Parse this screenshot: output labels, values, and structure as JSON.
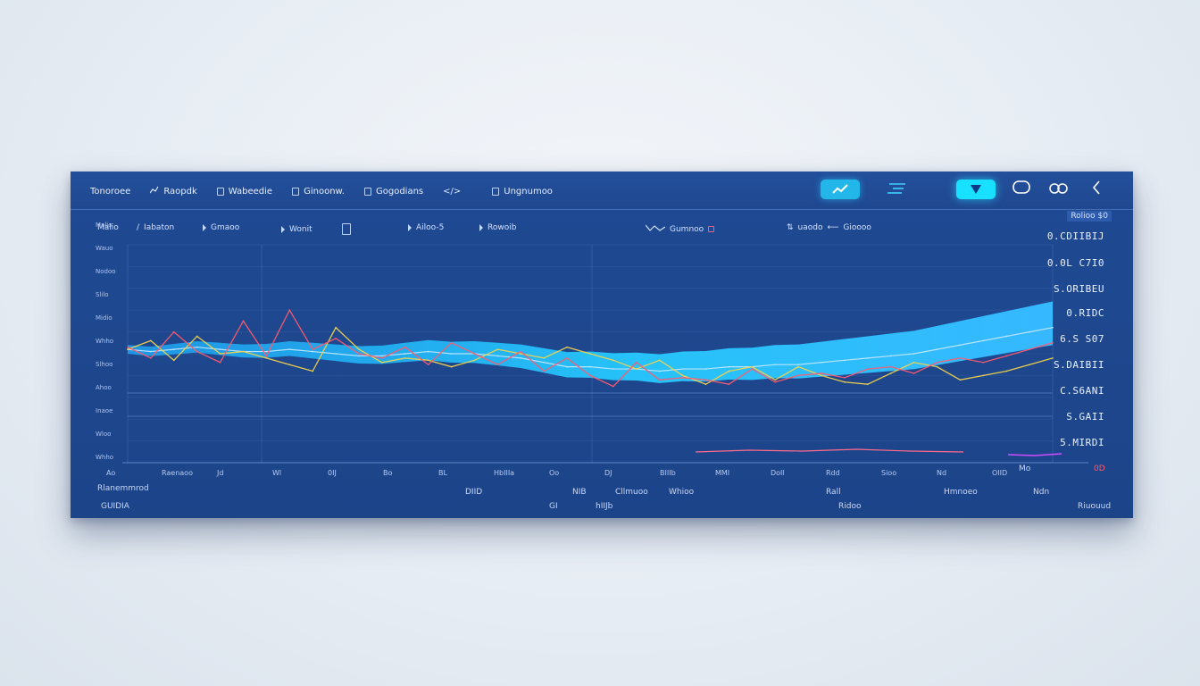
{
  "menu": {
    "items": [
      {
        "label": "Tonoroee",
        "icon": ""
      },
      {
        "label": "Raopdk",
        "icon": "chart-icon"
      },
      {
        "label": "Wabeedie",
        "icon": "doc-icon"
      },
      {
        "label": "Ginoonw.",
        "icon": "doc-icon"
      },
      {
        "label": "Gogodians",
        "icon": "doc-icon"
      },
      {
        "label": "Ungnumoo",
        "icon": "code-icon"
      }
    ]
  },
  "tools": {
    "trend_icon": "trend-icon",
    "menu_icon": "menu-icon",
    "filter_icon": "filter-icon",
    "chat_icon": "chat-icon",
    "link_icon": "link-icon",
    "back_icon": "chevron-left-icon"
  },
  "subbar": {
    "items": [
      "Malio",
      "Iabaton",
      "Gmaoo",
      "Wonit",
      "Ailoo-5",
      "Rowoib",
      "Gumnoo",
      "uaodo",
      "Gioooo"
    ]
  },
  "stats": {
    "header": "Rolioo $0",
    "values": [
      "0.CDIIBIJ",
      "0.0L C7I0",
      "S.ORIBEU",
      "0.RIDC",
      "6.S S07",
      "S.DAIBII",
      "C.S6ANI",
      "S.GAII",
      "5.MIRDI"
    ]
  },
  "yticks": [
    "Malio",
    "Wauo",
    "Nodoo",
    "Slilo",
    "Midio",
    "Whho",
    "Slhoo",
    "Ahoo",
    "Inaoe",
    "Wloo",
    "Whho"
  ],
  "xticks": [
    "Ao",
    "Raenaoo",
    "Jd",
    "Wl",
    "0IJ",
    "Bo",
    "BL",
    "HbIIIa",
    "Oo",
    "DJ",
    "BIIIb",
    "MMI",
    "DoIl",
    "Rdd",
    "Sioo",
    "Nd",
    "OIID"
  ],
  "footer": {
    "left_label": "Rlanemmrod",
    "left_tag": "GUIDIA",
    "mid_tags": [
      "DIID",
      "NIB",
      "Cllmuoo",
      "Whioo",
      "Rall"
    ],
    "mid_values": [
      "GI",
      "hIIJb"
    ],
    "right_tags": [
      "Ridoo",
      "Hmnoeo",
      "Ndn"
    ],
    "right_label": "Riuouud",
    "end_label": "Mo",
    "red_value": "0D"
  },
  "colors": {
    "panel": "#1f4a93",
    "accent_cyan": "#18e0ff",
    "series_yellow": "#f3d34a",
    "series_red": "#ff5a6e",
    "series_light": "#bfe6ff",
    "area": "#2fc6ff"
  },
  "chart_data": {
    "type": "area",
    "x": [
      0,
      1,
      2,
      3,
      4,
      5,
      6,
      7,
      8,
      9,
      10,
      11,
      12,
      13,
      14,
      15,
      16,
      17,
      18,
      19,
      20,
      21,
      22,
      23,
      24,
      25,
      26,
      27,
      28,
      29,
      30,
      31,
      32,
      33,
      34,
      35,
      36,
      37,
      38,
      39,
      40
    ],
    "series": [
      {
        "values": [
          52,
          51,
          52,
          53,
          52,
          51,
          51,
          52,
          51,
          50,
          49,
          49,
          50,
          51,
          50,
          50,
          49,
          48,
          46,
          44,
          44,
          43,
          43,
          42,
          43,
          43,
          44,
          44,
          45,
          45,
          46,
          47,
          48,
          49,
          50,
          52,
          54,
          56,
          58,
          60,
          62
        ]
      },
      {
        "values": [
          52,
          56,
          47,
          58,
          50,
          51,
          48,
          45,
          42,
          62,
          52,
          46,
          48,
          47,
          44,
          47,
          52,
          50,
          48,
          53,
          50,
          47,
          43,
          47,
          40,
          36,
          42,
          44,
          38,
          44,
          40,
          37,
          36,
          41,
          46,
          44,
          38,
          40,
          42,
          45,
          48
        ]
      },
      {
        "values": [
          53,
          48,
          60,
          51,
          46,
          65,
          49,
          70,
          52,
          57,
          50,
          48,
          53,
          45,
          55,
          50,
          45,
          51,
          42,
          48,
          40,
          35,
          46,
          38,
          39,
          38,
          36,
          43,
          37,
          40,
          41,
          39,
          43,
          44,
          41,
          46,
          48,
          46,
          49,
          52,
          55
        ]
      }
    ]
  }
}
